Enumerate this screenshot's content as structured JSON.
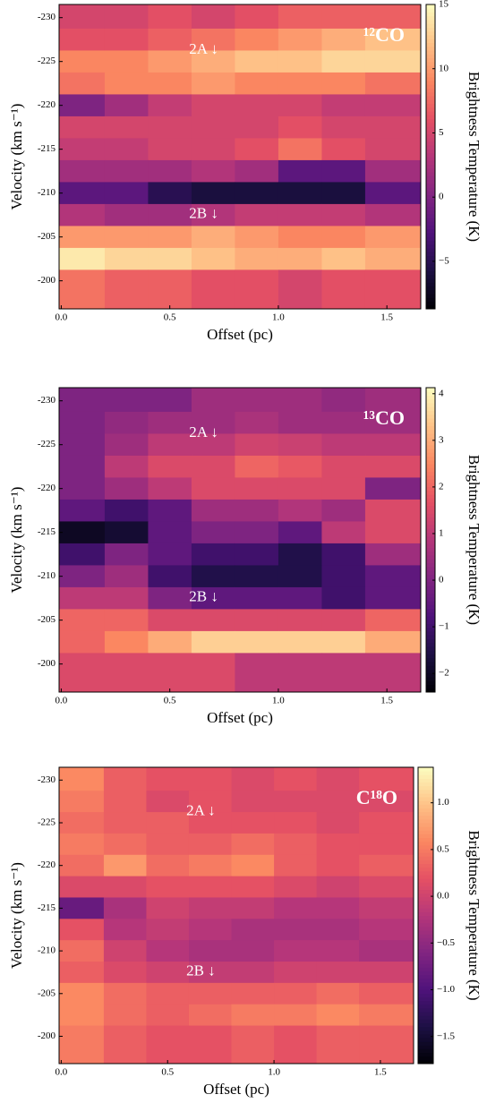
{
  "chart_data": [
    {
      "type": "heatmap",
      "title": "¹²CO",
      "xlabel": "Offset (pc)",
      "ylabel": "Velocity (km s⁻¹)",
      "colorbar_label": "Brightness Temperature (K)",
      "colormap": "magma",
      "annotations": [
        "2A ↓",
        "2B ↓"
      ],
      "x": [
        0.1,
        0.3,
        0.5,
        0.7,
        0.9,
        1.1,
        1.3,
        1.5
      ],
      "y": [
        -230,
        -227.5,
        -225,
        -222.5,
        -220,
        -217.5,
        -215,
        -212.5,
        -210,
        -207.5,
        -205,
        -202.5,
        -200
      ],
      "z": [
        [
          5,
          5,
          6,
          5,
          6,
          7,
          7,
          7
        ],
        [
          6,
          6,
          7,
          8,
          9,
          10,
          11,
          12
        ],
        [
          9,
          9,
          10,
          11,
          12,
          12,
          13,
          13
        ],
        [
          8,
          9,
          9,
          10,
          9,
          9,
          9,
          8
        ],
        [
          0,
          2,
          4,
          5,
          5,
          5,
          4,
          4
        ],
        [
          5,
          5,
          5,
          5,
          5,
          6,
          5,
          5
        ],
        [
          4,
          4,
          5,
          5,
          6,
          8,
          6,
          5
        ],
        [
          2,
          2,
          2,
          3,
          2,
          -2,
          -2,
          2
        ],
        [
          -2,
          -2,
          -5,
          -6,
          -6,
          -6,
          -6,
          -2
        ],
        [
          3,
          2,
          2,
          3,
          4,
          4,
          4,
          3
        ],
        [
          10,
          10,
          10,
          11,
          10,
          9,
          9,
          10
        ],
        [
          14,
          13,
          13,
          12,
          11,
          11,
          12,
          11
        ],
        [
          8,
          7,
          7,
          6,
          6,
          5,
          6,
          6
        ]
      ],
      "xlim": [
        -0.01,
        1.656
      ],
      "ylim": [
        -196.8,
        -231.5
      ],
      "xticks": [
        {
          "value": 0,
          "label": "0.0"
        },
        {
          "value": 0.5,
          "label": "0.5"
        },
        {
          "value": 1,
          "label": "1.0"
        },
        {
          "value": 1.5,
          "label": "1.5"
        }
      ],
      "yticks": [
        -230,
        -225,
        -220,
        -215,
        -210,
        -205,
        -200
      ],
      "clim": [
        -8.7,
        15
      ],
      "cticks": [
        {
          "value": -5,
          "label": "−5"
        },
        0,
        5,
        10,
        15
      ]
    },
    {
      "type": "heatmap",
      "title": "¹³CO",
      "xlabel": "Offset (pc)",
      "ylabel": "Velocity (km s⁻¹)",
      "colorbar_label": "Brightness Temperature (K)",
      "colormap": "magma",
      "annotations": [
        "2A ↓",
        "2B ↓"
      ],
      "x": [
        0.1,
        0.3,
        0.5,
        0.7,
        0.9,
        1.1,
        1.3,
        1.5
      ],
      "y": [
        -230,
        -227.5,
        -225,
        -222.5,
        -220,
        -217.5,
        -215,
        -212.5,
        -210,
        -207.5,
        -205,
        -202.5,
        -200
      ],
      "z": [
        [
          0,
          0,
          0,
          0.5,
          0.5,
          0.5,
          0.3,
          0.5
        ],
        [
          0,
          0.3,
          0.5,
          0.5,
          0.7,
          0.5,
          0.5,
          0.5
        ],
        [
          0,
          0.5,
          1,
          1,
          1.3,
          1.2,
          1,
          1
        ],
        [
          0,
          1,
          1.5,
          1.5,
          2,
          1.8,
          1.5,
          1.5
        ],
        [
          0,
          0.5,
          1,
          1.5,
          1.5,
          1.5,
          1.5,
          0
        ],
        [
          -0.5,
          -1,
          -0.5,
          0.5,
          0.5,
          0.8,
          0.5,
          1.5
        ],
        [
          -2,
          -1.8,
          -0.5,
          0,
          0,
          -0.5,
          1,
          1.5
        ],
        [
          -1,
          0,
          -0.5,
          -1,
          -1,
          -1.5,
          -1,
          0.5
        ],
        [
          0,
          0.5,
          -1,
          -1.5,
          -1.5,
          -1.5,
          -1,
          -0.5
        ],
        [
          1,
          1,
          0,
          -0.5,
          -0.5,
          -0.5,
          -1,
          -0.5
        ],
        [
          2,
          2,
          1.5,
          1.5,
          1.5,
          1.5,
          1.5,
          2
        ],
        [
          2,
          2.5,
          3,
          3.5,
          3.5,
          3.5,
          3.5,
          3
        ],
        [
          1.5,
          1.5,
          1.5,
          1.5,
          1,
          1,
          1,
          1
        ]
      ],
      "xlim": [
        -0.01,
        1.656
      ],
      "ylim": [
        -196.8,
        -231.5
      ],
      "xticks": [
        {
          "value": 0,
          "label": "0.0"
        },
        {
          "value": 0.5,
          "label": "0.5"
        },
        {
          "value": 1,
          "label": "1.0"
        },
        {
          "value": 1.5,
          "label": "1.5"
        }
      ],
      "yticks": [
        -230,
        -225,
        -220,
        -215,
        -210,
        -205,
        -200
      ],
      "clim": [
        -2.4,
        4.13
      ],
      "cticks": [
        {
          "value": -2,
          "label": "−2"
        },
        {
          "value": -1,
          "label": "−1"
        },
        0,
        1,
        2,
        3,
        4
      ]
    },
    {
      "type": "heatmap",
      "title": "C¹⁸O",
      "xlabel": "Offset (pc)",
      "ylabel": "Velocity (km s⁻¹)",
      "colorbar_label": "Brightness Temperature (K)",
      "colormap": "magma",
      "annotations": [
        "2A ↓",
        "2B ↓"
      ],
      "x": [
        0.1,
        0.3,
        0.5,
        0.7,
        0.9,
        1.1,
        1.3,
        1.5
      ],
      "y": [
        -230,
        -227.5,
        -225,
        -222.5,
        -220,
        -217.5,
        -215,
        -212.5,
        -210,
        -207.5,
        -205,
        -202.5,
        -200
      ],
      "z": [
        [
          0.6,
          0.3,
          0.2,
          0.2,
          0.1,
          0.2,
          0.1,
          0.2
        ],
        [
          0.5,
          0.3,
          0.1,
          0.2,
          0.1,
          0.1,
          0.1,
          0.1
        ],
        [
          0.4,
          0.3,
          0.3,
          0.2,
          0.2,
          0.2,
          0.1,
          0.2
        ],
        [
          0.5,
          0.4,
          0.3,
          0.3,
          0.4,
          0.3,
          0.2,
          0.2
        ],
        [
          0.4,
          0.7,
          0.4,
          0.5,
          0.6,
          0.3,
          0.2,
          0.3
        ],
        [
          0.1,
          0.1,
          0.2,
          0.2,
          0.2,
          0.1,
          0,
          0.1
        ],
        [
          -0.8,
          -0.3,
          0,
          -0.1,
          -0.1,
          -0.2,
          -0.2,
          -0.1
        ],
        [
          0.2,
          -0.2,
          -0.1,
          -0.2,
          -0.3,
          -0.3,
          -0.3,
          -0.2
        ],
        [
          0.4,
          0,
          -0.2,
          -0.3,
          -0.3,
          -0.2,
          -0.2,
          -0.3
        ],
        [
          0.3,
          0.1,
          0,
          -0.1,
          -0.1,
          0,
          0,
          0
        ],
        [
          0.6,
          0.4,
          0.3,
          0.3,
          0.3,
          0.3,
          0.4,
          0.3
        ],
        [
          0.6,
          0.4,
          0.3,
          0.4,
          0.5,
          0.5,
          0.6,
          0.5
        ],
        [
          0.5,
          0.3,
          0.2,
          0.2,
          0.3,
          0.2,
          0.3,
          0.3
        ]
      ],
      "xlim": [
        -0.01,
        1.656
      ],
      "ylim": [
        -196.8,
        -231.5
      ],
      "xticks": [
        {
          "value": 0,
          "label": "0.0"
        },
        {
          "value": 0.5,
          "label": "0.5"
        },
        {
          "value": 1,
          "label": "1.0"
        },
        {
          "value": 1.5,
          "label": "1.5"
        }
      ],
      "yticks": [
        -230,
        -225,
        -220,
        -215,
        -210,
        -205,
        -200
      ],
      "clim": [
        -1.79,
        1.38
      ],
      "cticks": [
        {
          "value": -1.5,
          "label": "−1.5"
        },
        {
          "value": -1,
          "label": "−1.0"
        },
        {
          "value": -0.5,
          "label": "−0.5"
        },
        {
          "value": 0,
          "label": "0.0"
        },
        {
          "value": 0.5,
          "label": "0.5"
        },
        {
          "value": 1,
          "label": "1.0"
        }
      ]
    }
  ]
}
